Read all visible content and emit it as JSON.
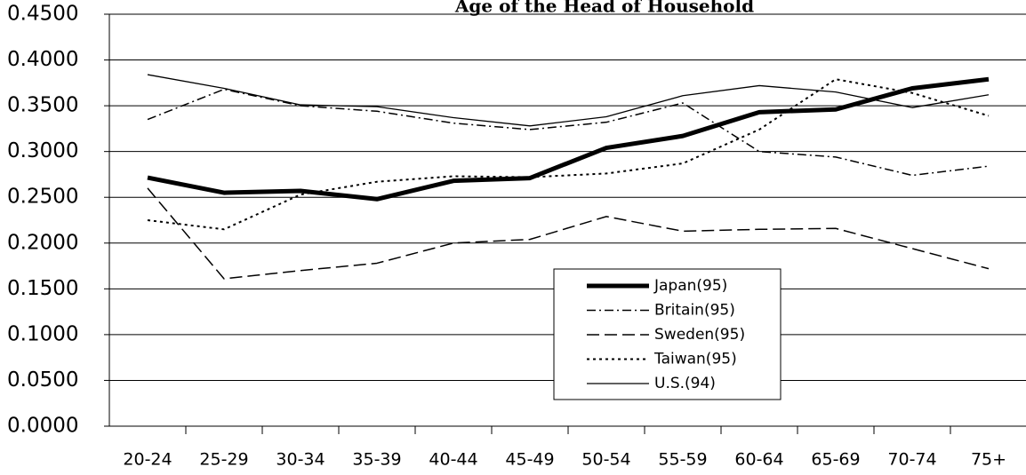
{
  "chart_data": {
    "type": "line",
    "title": "Age of the Head of Household",
    "categories": [
      "20-24",
      "25-29",
      "30-34",
      "35-39",
      "40-44",
      "45-49",
      "50-54",
      "55-59",
      "60-64",
      "65-69",
      "70-74",
      "75+"
    ],
    "series": [
      {
        "name": "Japan(95)",
        "color": "#000000",
        "dash": "thick",
        "values": [
          0.2715,
          0.255,
          0.257,
          0.248,
          0.268,
          0.271,
          0.304,
          0.317,
          0.343,
          0.346,
          0.369,
          0.379
        ]
      },
      {
        "name": "Britain(95)",
        "color": "#000000",
        "dash": "dashdot",
        "values": [
          0.335,
          0.368,
          0.35,
          0.344,
          0.331,
          0.324,
          0.332,
          0.353,
          0.3,
          0.294,
          0.274,
          0.284
        ]
      },
      {
        "name": "Sweden(95)",
        "color": "#000000",
        "dash": "dash",
        "values": [
          0.26,
          0.161,
          0.17,
          0.178,
          0.2,
          0.204,
          0.229,
          0.213,
          0.215,
          0.216,
          0.194,
          0.172
        ]
      },
      {
        "name": "Taiwan(95)",
        "color": "#000000",
        "dash": "dot",
        "values": [
          0.225,
          0.215,
          0.253,
          0.267,
          0.273,
          0.272,
          0.276,
          0.287,
          0.324,
          0.379,
          0.364,
          0.339
        ]
      },
      {
        "name": "U.S.(94)",
        "color": "#000000",
        "dash": "solid",
        "values": [
          0.384,
          0.369,
          0.351,
          0.349,
          0.337,
          0.328,
          0.338,
          0.361,
          0.372,
          0.365,
          0.348,
          0.362
        ]
      }
    ],
    "ylim": [
      0,
      0.45
    ],
    "yticks": [
      {
        "value": 0,
        "label": "0.0000"
      },
      {
        "value": 0.05,
        "label": "0.0500"
      },
      {
        "value": 0.1,
        "label": "0.1000"
      },
      {
        "value": 0.15,
        "label": "0.1500"
      },
      {
        "value": 0.2,
        "label": "0.2000"
      },
      {
        "value": 0.25,
        "label": "0.2500"
      },
      {
        "value": 0.3,
        "label": "0.3000"
      },
      {
        "value": 0.35,
        "label": "0.3500"
      },
      {
        "value": 0.4,
        "label": "0.4000"
      },
      {
        "value": 0.45,
        "label": "0.4500"
      }
    ],
    "grid": true
  }
}
